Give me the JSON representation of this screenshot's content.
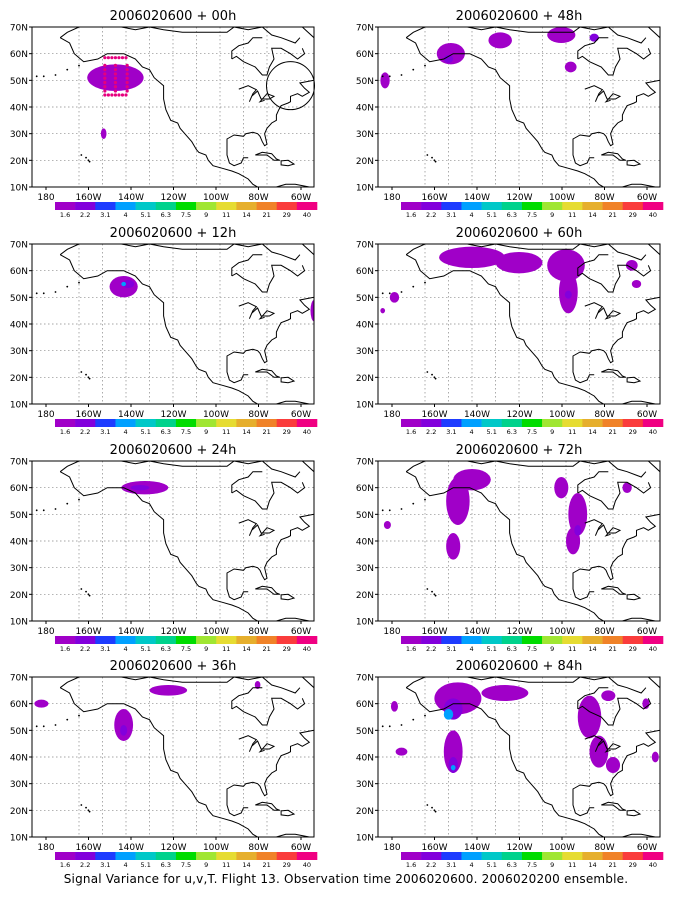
{
  "caption": "Signal Variance for u,v,T. Flight 13. Observation time 2006020600. 2006020200 ensemble.",
  "lat_labels": [
    "70N",
    "60N",
    "50N",
    "40N",
    "30N",
    "20N",
    "10N"
  ],
  "lon_labels": [
    "180",
    "160W",
    "140W",
    "120W",
    "100W",
    "80W",
    "60W"
  ],
  "colorbar": {
    "labels": [
      "1.6",
      "2.2",
      "3.1",
      "4",
      "5.1",
      "6.3",
      "7.5",
      "9",
      "11",
      "14",
      "21",
      "29",
      "40"
    ],
    "colors": [
      "#a000c8",
      "#8200dc",
      "#1e3cff",
      "#00a0ff",
      "#00c8c8",
      "#00d28c",
      "#00dc00",
      "#a0e632",
      "#e6dc32",
      "#e6af2d",
      "#f08228",
      "#fa3c3c",
      "#f00082"
    ]
  },
  "panels": [
    {
      "id": "p00",
      "title": "2006020600 + 00h"
    },
    {
      "id": "p48",
      "title": "2006020600 + 48h"
    },
    {
      "id": "p12",
      "title": "2006020600 + 12h"
    },
    {
      "id": "p60",
      "title": "2006020600 + 60h"
    },
    {
      "id": "p24",
      "title": "2006020600 + 24h"
    },
    {
      "id": "p72",
      "title": "2006020600 + 72h"
    },
    {
      "id": "p36",
      "title": "2006020600 + 36h"
    },
    {
      "id": "p84",
      "title": "2006020600 + 84h"
    }
  ]
}
